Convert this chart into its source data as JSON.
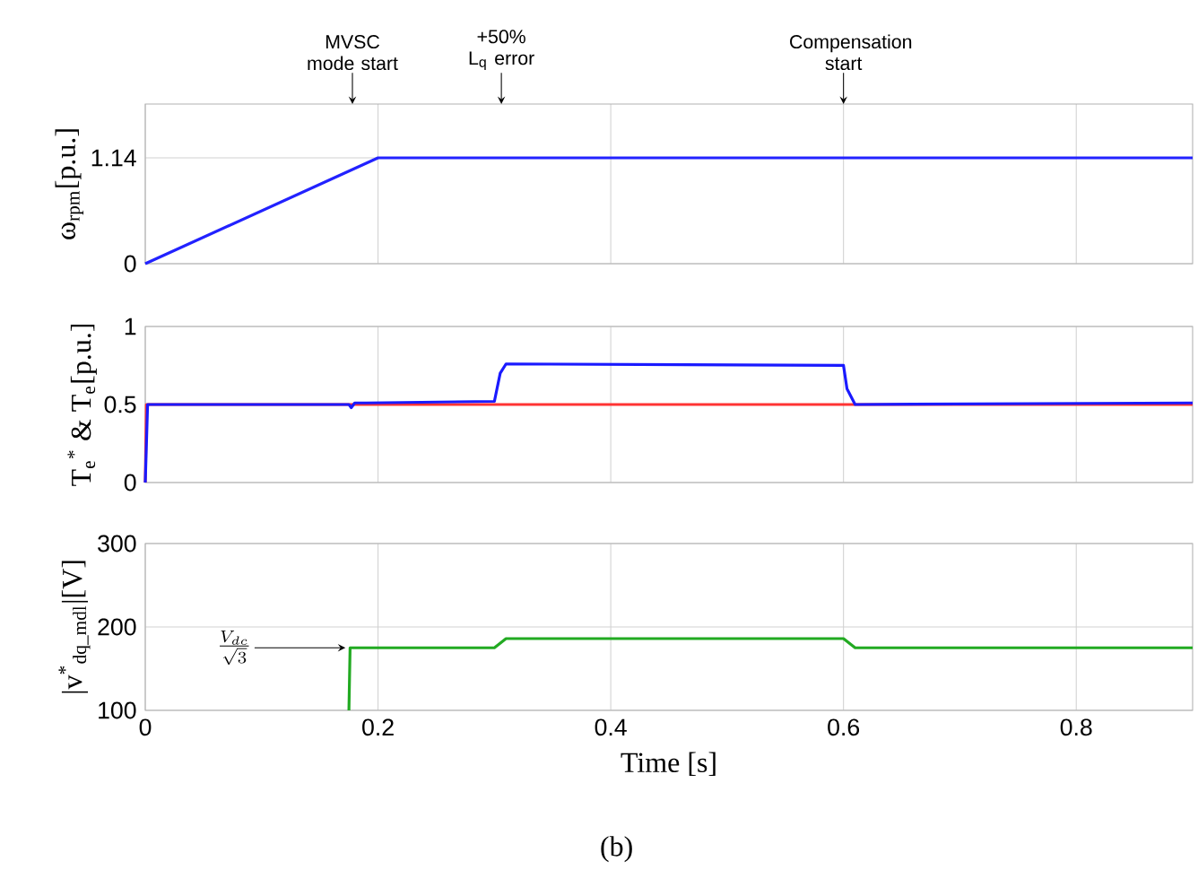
{
  "chart_data": [
    {
      "type": "line",
      "ylabel": "ω$_{rpm}$[p.u.]",
      "xlim": [
        0,
        0.9
      ],
      "xticks": [
        0,
        0.2,
        0.4,
        0.6,
        0.8
      ],
      "ylim": [
        0,
        1.72
      ],
      "yticks": [
        0,
        1.14
      ],
      "grid": true,
      "tick_labels": "y",
      "x": [
        0,
        0.2,
        0.9
      ],
      "series": [
        {
          "color": "#2222ff",
          "values": [
            0,
            1.14,
            1.14
          ]
        }
      ],
      "ref_lines": [
        {
          "axis": "x",
          "value": 0.178,
          "label": "MVSC mode start"
        },
        {
          "axis": "x",
          "value": 0.306,
          "label": "+50% L$_{q}$ error"
        },
        {
          "axis": "x",
          "value": 0.6,
          "label": "Compensation start"
        }
      ]
    },
    {
      "type": "line",
      "ylabel": "T$_{e}$$^{*}$ & T$_{e}$[p.u.]",
      "xlim": [
        0,
        0.9
      ],
      "xticks": [
        0,
        0.2,
        0.4,
        0.6,
        0.8
      ],
      "ylim": [
        0,
        1
      ],
      "yticks": [
        0,
        0.5,
        1
      ],
      "grid": true,
      "tick_labels": "y",
      "series": [
        {
          "color": "#ff3333",
          "x": [
            0,
            0.001,
            0.9
          ],
          "values": [
            0,
            0.5,
            0.5
          ]
        },
        {
          "color": "#1a1aff",
          "x": [
            0,
            0.002,
            0.175,
            0.177,
            0.18,
            0.19,
            0.3,
            0.305,
            0.31,
            0.6,
            0.603,
            0.61,
            0.9
          ],
          "values": [
            0,
            0.5,
            0.5,
            0.48,
            0.51,
            0.51,
            0.52,
            0.7,
            0.76,
            0.75,
            0.6,
            0.5,
            0.51
          ]
        }
      ]
    },
    {
      "type": "line",
      "ylabel": "|v$^{*}$$_{dq_mdl}$|[V]",
      "xlabel": "Time [s]",
      "xlim": [
        0,
        0.9
      ],
      "xticks": [
        0,
        0.2,
        0.4,
        0.6,
        0.8
      ],
      "ylim": [
        100,
        300
      ],
      "yticks": [
        100,
        200,
        300
      ],
      "grid": true,
      "series": [
        {
          "color": "#22aa22",
          "x": [
            0.175,
            0.176,
            0.3,
            0.31,
            0.6,
            0.61,
            0.9
          ],
          "values": [
            100,
            175,
            175,
            186,
            186,
            175,
            175
          ]
        }
      ],
      "annotations": [
        {
          "text": "\\frac{V_{dc}}{\\sqrt{3}}",
          "x": 0.172,
          "y": 175
        },
        "(b)"
      ]
    }
  ]
}
